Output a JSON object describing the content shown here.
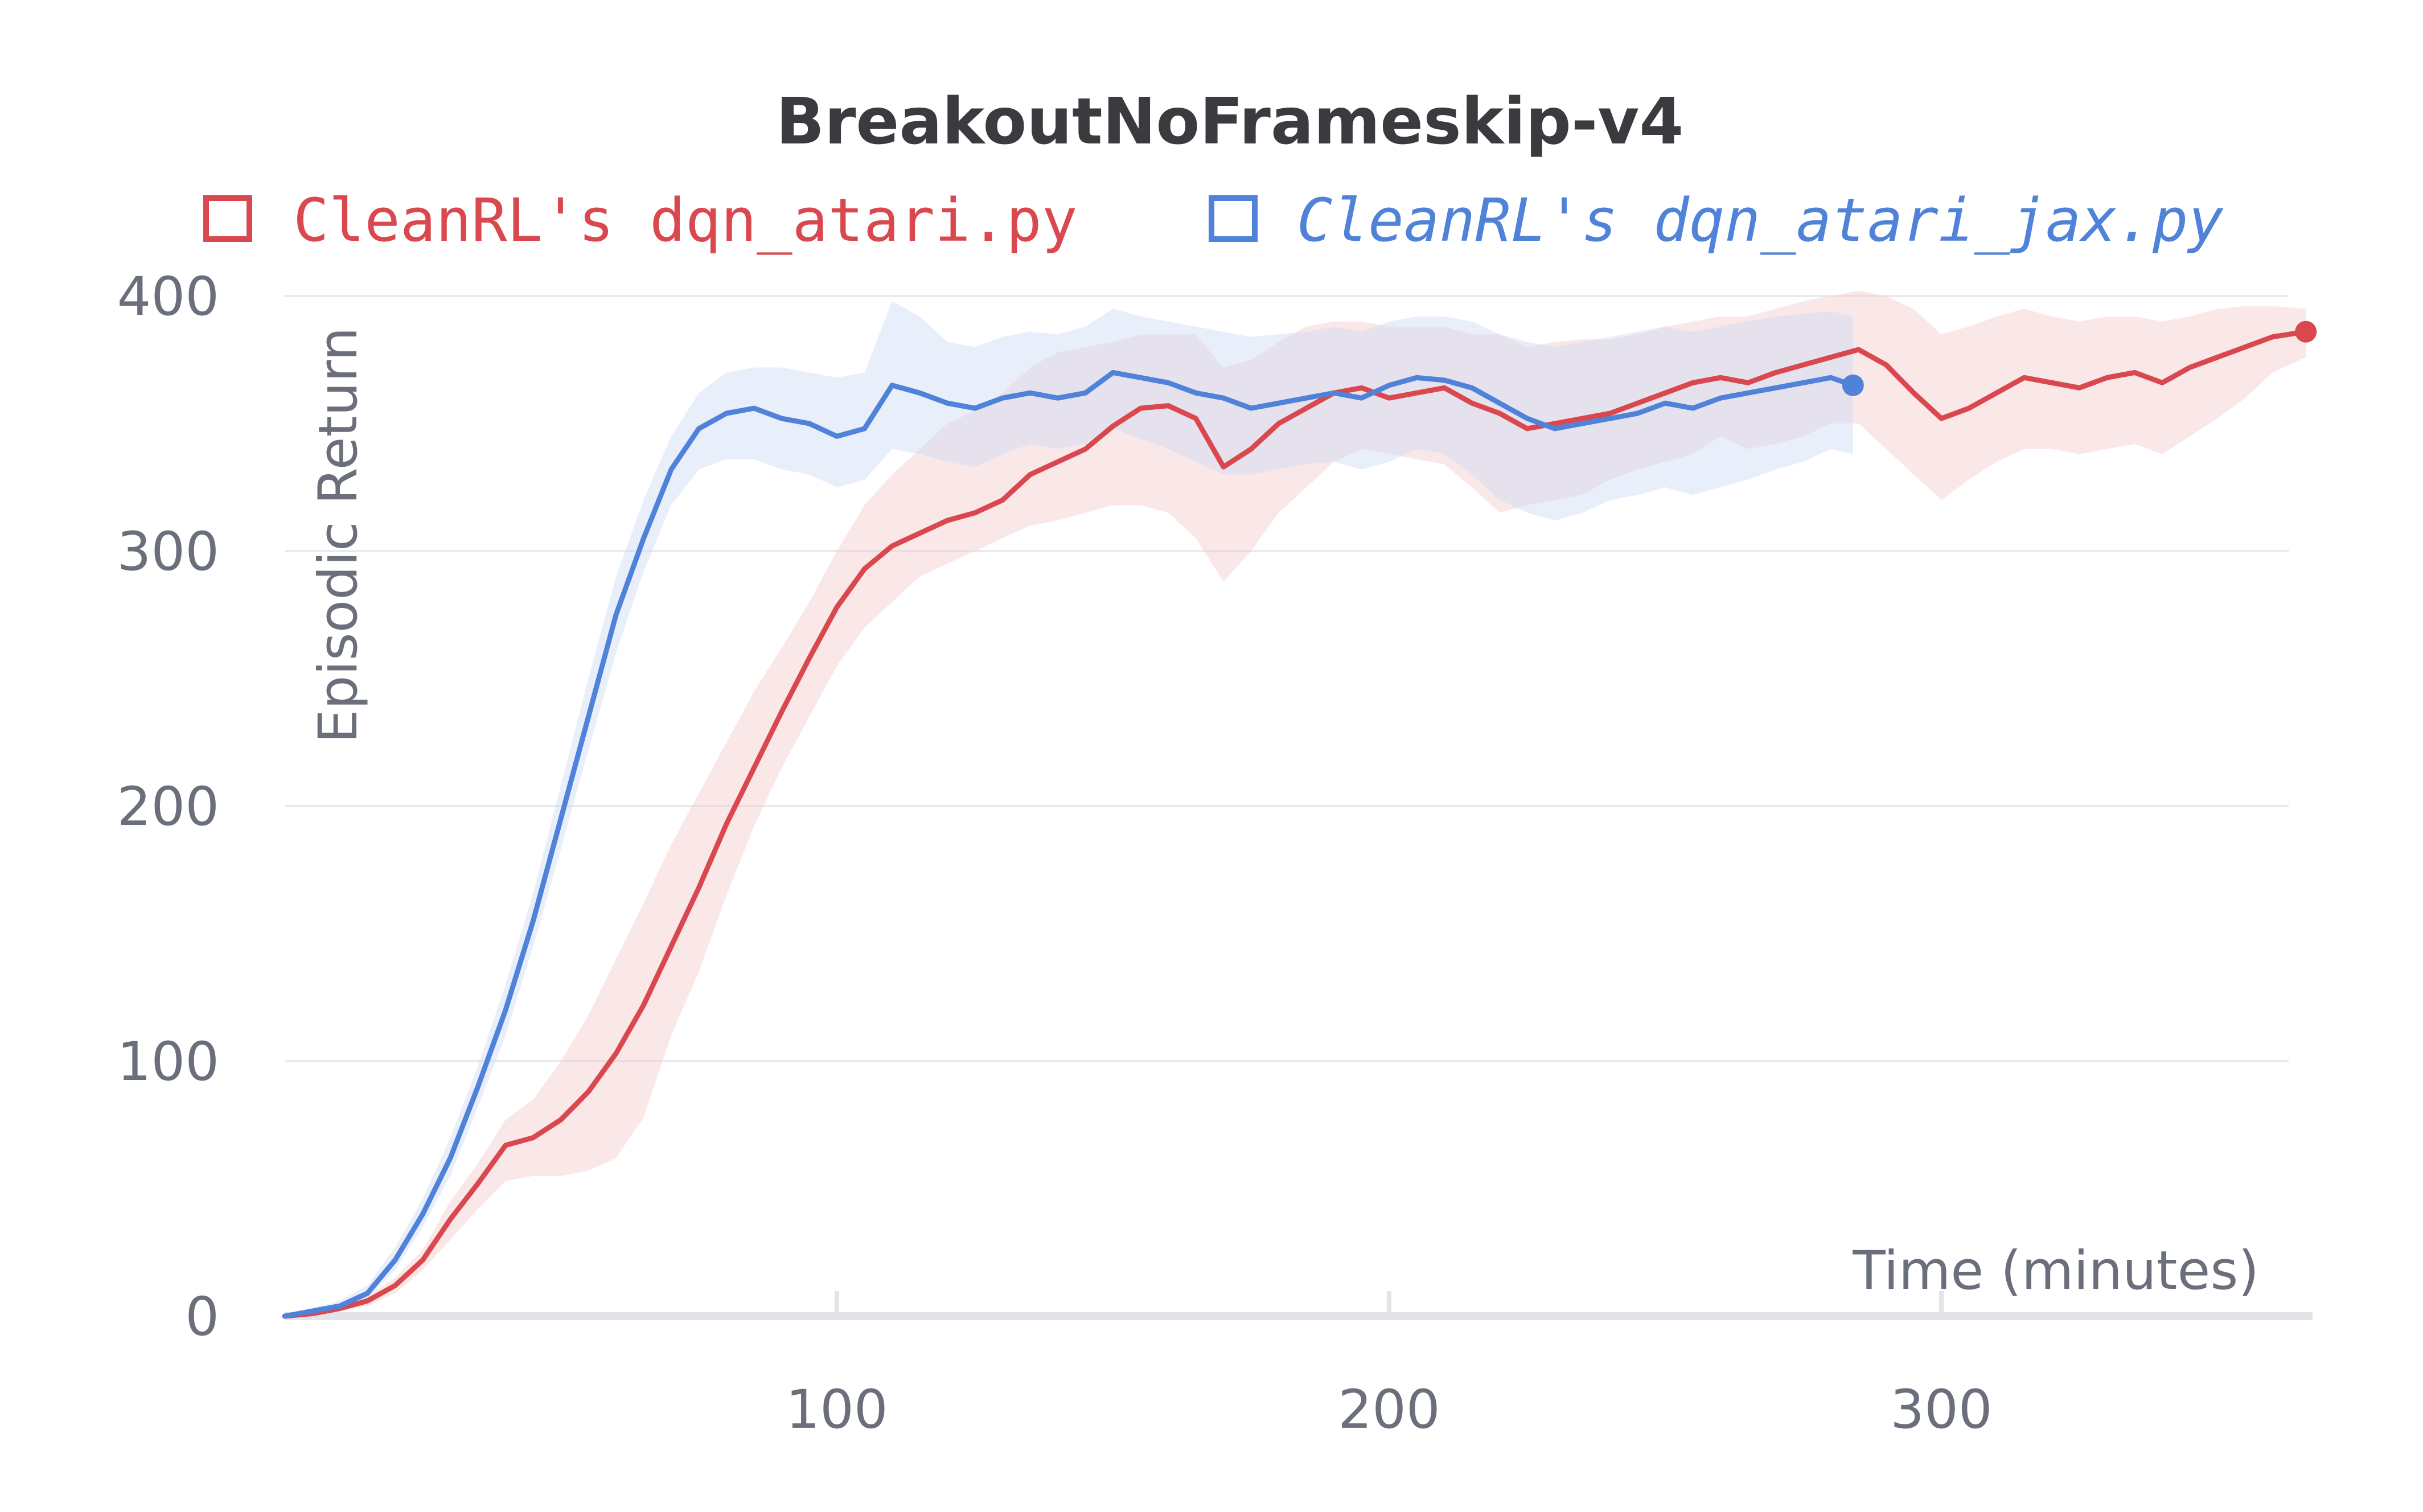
{
  "chart_data": {
    "type": "line",
    "title": "BreakoutNoFrameskip-v4",
    "xlabel": "Time (minutes)",
    "ylabel": "Episodic Return",
    "xlim": [
      0,
      366
    ],
    "ylim": [
      0,
      400
    ],
    "x_ticks": [
      "100",
      "200",
      "300"
    ],
    "y_ticks": [
      "0",
      "100",
      "200",
      "300",
      "400"
    ],
    "grid": true,
    "legend_position": "top",
    "series": [
      {
        "name": "CleanRL's dqn_atari.py",
        "color": "#d9484e",
        "band_color": "#f3c8ca",
        "italic": false,
        "x": [
          0,
          5,
          10,
          15,
          20,
          25,
          30,
          35,
          40,
          45,
          50,
          55,
          60,
          65,
          70,
          75,
          80,
          85,
          90,
          95,
          100,
          105,
          110,
          115,
          120,
          125,
          130,
          135,
          140,
          145,
          150,
          155,
          160,
          165,
          170,
          175,
          180,
          185,
          190,
          195,
          200,
          205,
          210,
          215,
          220,
          225,
          230,
          235,
          240,
          245,
          250,
          255,
          260,
          265,
          270,
          275,
          280,
          285,
          290,
          295,
          300,
          305,
          310,
          315,
          320,
          325,
          330,
          335,
          340,
          345,
          350,
          355,
          360,
          366
        ],
        "y": [
          0,
          1,
          3,
          6,
          12,
          22,
          38,
          52,
          67,
          70,
          77,
          88,
          103,
          122,
          145,
          168,
          193,
          215,
          237,
          258,
          278,
          293,
          302,
          307,
          312,
          315,
          320,
          330,
          335,
          340,
          349,
          356,
          357,
          352,
          333,
          340,
          350,
          356,
          362,
          364,
          360,
          362,
          364,
          358,
          354,
          348,
          350,
          352,
          354,
          358,
          362,
          366,
          368,
          366,
          370,
          373,
          376,
          379,
          373,
          362,
          352,
          356,
          362,
          368,
          366,
          364,
          368,
          370,
          366,
          372,
          376,
          380,
          384,
          386
        ],
        "lower": [
          0,
          0,
          2,
          4,
          9,
          18,
          30,
          42,
          53,
          55,
          55,
          57,
          62,
          78,
          110,
          135,
          165,
          192,
          215,
          235,
          255,
          270,
          280,
          290,
          295,
          300,
          305,
          310,
          312,
          315,
          318,
          318,
          315,
          305,
          288,
          300,
          315,
          325,
          335,
          340,
          338,
          336,
          334,
          325,
          315,
          318,
          320,
          322,
          328,
          332,
          335,
          338,
          345,
          340,
          342,
          345,
          350,
          350,
          340,
          330,
          320,
          328,
          335,
          340,
          340,
          338,
          340,
          342,
          338,
          345,
          352,
          360,
          370,
          376
        ],
        "upper": [
          1,
          3,
          5,
          8,
          15,
          26,
          45,
          60,
          77,
          85,
          100,
          118,
          140,
          162,
          185,
          205,
          225,
          245,
          262,
          280,
          300,
          318,
          330,
          340,
          350,
          355,
          362,
          372,
          378,
          380,
          382,
          385,
          385,
          385,
          372,
          375,
          382,
          388,
          390,
          390,
          388,
          388,
          388,
          385,
          385,
          380,
          382,
          383,
          383,
          385,
          388,
          390,
          392,
          392,
          395,
          398,
          400,
          402,
          400,
          395,
          385,
          388,
          392,
          395,
          392,
          390,
          392,
          392,
          390,
          392,
          395,
          396,
          396,
          395
        ]
      },
      {
        "name": "CleanRL's dqn_atari_jax.py",
        "color": "#4f82d8",
        "band_color": "#c8daf6",
        "italic": true,
        "x": [
          0,
          5,
          10,
          15,
          20,
          25,
          30,
          35,
          40,
          45,
          50,
          55,
          60,
          65,
          70,
          75,
          80,
          85,
          90,
          95,
          100,
          105,
          110,
          115,
          120,
          125,
          130,
          135,
          140,
          145,
          150,
          155,
          160,
          165,
          170,
          175,
          180,
          185,
          190,
          195,
          200,
          205,
          210,
          215,
          220,
          225,
          230,
          235,
          240,
          245,
          250,
          255,
          260,
          265,
          270,
          275,
          280,
          284
        ],
        "y": [
          0,
          2,
          4,
          9,
          22,
          40,
          62,
          90,
          120,
          155,
          195,
          235,
          275,
          305,
          332,
          348,
          354,
          356,
          352,
          350,
          345,
          348,
          365,
          362,
          358,
          356,
          360,
          362,
          360,
          362,
          370,
          368,
          366,
          362,
          360,
          356,
          358,
          360,
          362,
          360,
          365,
          368,
          367,
          364,
          358,
          352,
          348,
          350,
          352,
          354,
          358,
          356,
          360,
          362,
          364,
          366,
          368,
          365
        ],
        "lower": [
          0,
          1,
          3,
          7,
          18,
          35,
          55,
          82,
          110,
          145,
          183,
          222,
          260,
          292,
          318,
          332,
          336,
          336,
          332,
          330,
          325,
          328,
          340,
          338,
          335,
          333,
          338,
          342,
          340,
          342,
          348,
          344,
          340,
          335,
          330,
          330,
          332,
          334,
          335,
          332,
          335,
          340,
          338,
          330,
          320,
          315,
          312,
          315,
          320,
          322,
          325,
          322,
          325,
          328,
          332,
          335,
          340,
          338
        ],
        "upper": [
          1,
          3,
          6,
          12,
          27,
          46,
          70,
          98,
          130,
          166,
          208,
          250,
          290,
          320,
          345,
          362,
          370,
          372,
          372,
          370,
          368,
          370,
          398,
          392,
          382,
          380,
          384,
          386,
          385,
          388,
          395,
          392,
          390,
          388,
          386,
          384,
          385,
          386,
          388,
          386,
          390,
          392,
          392,
          390,
          385,
          382,
          380,
          382,
          384,
          386,
          388,
          386,
          388,
          390,
          392,
          393,
          394,
          392
        ]
      }
    ]
  }
}
